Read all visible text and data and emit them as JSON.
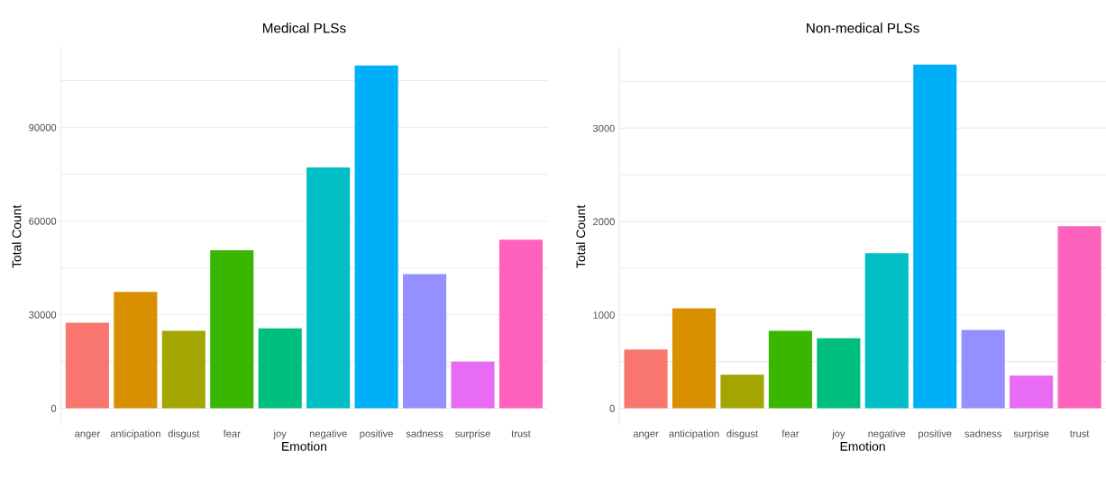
{
  "chart_data": [
    {
      "type": "bar",
      "title": "Medical PLSs",
      "xlabel": "Emotion",
      "ylabel": "Total Count",
      "categories": [
        "anger",
        "anticipation",
        "disgust",
        "fear",
        "joy",
        "negative",
        "positive",
        "sadness",
        "surprise",
        "trust"
      ],
      "values": [
        27400,
        37300,
        24800,
        50600,
        25600,
        77200,
        109800,
        43000,
        14900,
        54000
      ],
      "colors": [
        "#f8766d",
        "#d89000",
        "#a3a500",
        "#39b600",
        "#00bf7d",
        "#00bfc4",
        "#00b0f6",
        "#9590ff",
        "#e76bf3",
        "#ff62bc"
      ],
      "ylim": [
        -5500,
        115500
      ],
      "yticks": [
        0,
        {
          "value": 15000,
          "label": null
        },
        30000,
        {
          "value": 45000,
          "label": null
        },
        60000,
        {
          "value": 75000,
          "label": null
        },
        90000,
        {
          "value": 105000,
          "label": null
        }
      ],
      "grid": "y"
    },
    {
      "type": "bar",
      "title": "Non-medical PLSs",
      "xlabel": "Emotion",
      "ylabel": "Total Count",
      "categories": [
        "anger",
        "anticipation",
        "disgust",
        "fear",
        "joy",
        "negative",
        "positive",
        "sadness",
        "surprise",
        "trust"
      ],
      "values": [
        630,
        1070,
        360,
        830,
        750,
        1660,
        3680,
        840,
        350,
        1950
      ],
      "colors": [
        "#f8766d",
        "#d89000",
        "#a3a500",
        "#39b600",
        "#00bf7d",
        "#00bfc4",
        "#00b0f6",
        "#9590ff",
        "#e76bf3",
        "#ff62bc"
      ],
      "ylim": [
        -184,
        3861
      ],
      "yticks": [
        0,
        {
          "value": 500,
          "label": null
        },
        1000,
        {
          "value": 1500,
          "label": null
        },
        2000,
        {
          "value": 2500,
          "label": null
        },
        3000,
        {
          "value": 3500,
          "label": null
        }
      ],
      "grid": "y"
    }
  ]
}
